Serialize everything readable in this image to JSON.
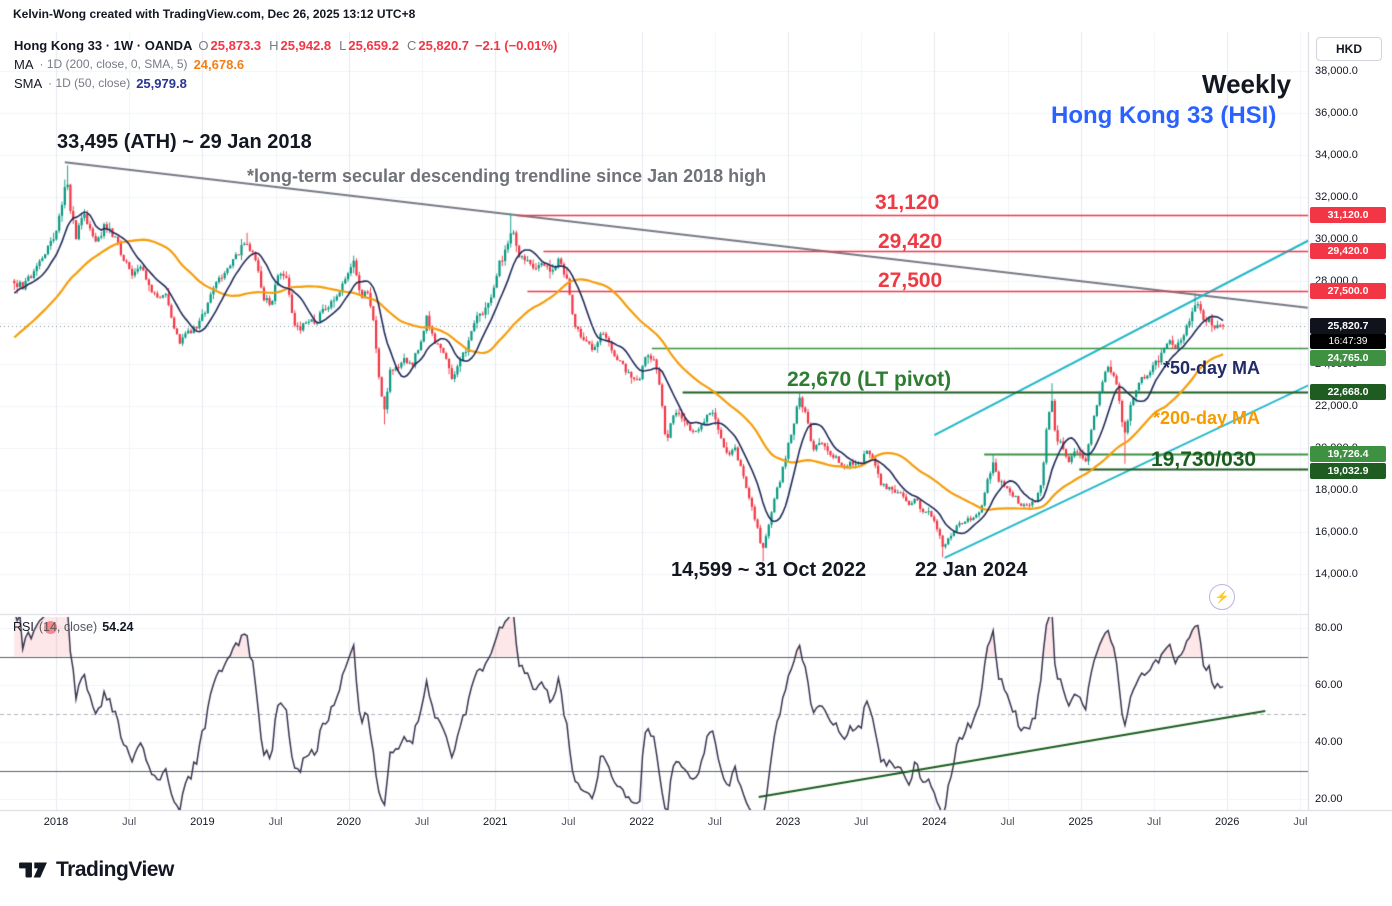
{
  "attribution": "Kelvin-Wong created with TradingView.com, Dec 26, 2025 13:12 UTC+8",
  "logo_text": "TradingView",
  "legend": {
    "symbol_row": {
      "title": "Hong Kong 33 · 1W · OANDA",
      "ohlc": [
        [
          "O",
          "25,873.3"
        ],
        [
          "H",
          "25,942.8"
        ],
        [
          "L",
          "25,659.2"
        ],
        [
          "C",
          "25,820.7"
        ]
      ],
      "change": "−2.1 (−0.01%)",
      "value_color": "#f23645"
    },
    "indicators": [
      {
        "name": "MA",
        "params": "· 1D (200, close, 0, SMA, 5)",
        "value": "24,678.6",
        "color": "#f57f17"
      },
      {
        "name": "SMA",
        "params": "· 1D (50, close)",
        "value": "25,979.8",
        "color": "#283593"
      }
    ]
  },
  "annotations": {
    "weekly": "Weekly",
    "symbol": "Hong Kong 33 (HSI)",
    "ath": "33,495 (ATH) ~ 29 Jan 2018",
    "trendline_note": "*long-term secular descending trendline since Jan 2018 high",
    "res1": "31,120",
    "res2": "29,420",
    "res3": "27,500",
    "pivot": "22,670 (LT pivot)",
    "ma50_note": "*50-day MA",
    "ma200_note": "*200-day MA",
    "support_note": "19,730/030",
    "low_2022": "14,599 ~ 31 Oct 2022",
    "low_2024": "22 Jan 2024"
  },
  "rsi_legend": {
    "name": "RSI",
    "params": "(14, close)",
    "value": "54.24"
  },
  "axis": {
    "currency": "HKD",
    "price_ticks": [
      {
        "label": "38,000.0",
        "value": 38000
      },
      {
        "label": "36,000.0",
        "value": 36000
      },
      {
        "label": "34,000.0",
        "value": 34000
      },
      {
        "label": "32,000.0",
        "value": 32000
      },
      {
        "label": "30,000.0",
        "value": 30000
      },
      {
        "label": "28,000.0",
        "value": 28000
      },
      {
        "label": "26,000.0",
        "value": 26000
      },
      {
        "label": "24,000.0",
        "value": 24000
      },
      {
        "label": "22,000.0",
        "value": 22000
      },
      {
        "label": "20,000.0",
        "value": 20000
      },
      {
        "label": "18,000.0",
        "value": 18000
      },
      {
        "label": "16,000.0",
        "value": 16000
      },
      {
        "label": "14,000.0",
        "value": 14000
      }
    ],
    "rsi_ticks": [
      {
        "label": "80.00",
        "value": 80
      },
      {
        "label": "60.00",
        "value": 60
      },
      {
        "label": "40.00",
        "value": 40
      },
      {
        "label": "20.00",
        "value": 20
      }
    ],
    "time_ticks": [
      {
        "label": "2018",
        "year": 2018,
        "major": true
      },
      {
        "label": "Jul",
        "year": 2018.5,
        "major": false
      },
      {
        "label": "2019",
        "year": 2019,
        "major": true
      },
      {
        "label": "Jul",
        "year": 2019.5,
        "major": false
      },
      {
        "label": "2020",
        "year": 2020,
        "major": true
      },
      {
        "label": "Jul",
        "year": 2020.5,
        "major": false
      },
      {
        "label": "2021",
        "year": 2021,
        "major": true
      },
      {
        "label": "Jul",
        "year": 2021.5,
        "major": false
      },
      {
        "label": "2022",
        "year": 2022,
        "major": true
      },
      {
        "label": "Jul",
        "year": 2022.5,
        "major": false
      },
      {
        "label": "2023",
        "year": 2023,
        "major": true
      },
      {
        "label": "Jul",
        "year": 2023.5,
        "major": false
      },
      {
        "label": "2024",
        "year": 2024,
        "major": true
      },
      {
        "label": "Jul",
        "year": 2024.5,
        "major": false
      },
      {
        "label": "2025",
        "year": 2025,
        "major": true
      },
      {
        "label": "Jul",
        "year": 2025.5,
        "major": false
      },
      {
        "label": "2026",
        "year": 2026,
        "major": true
      },
      {
        "label": "Jul",
        "year": 2026.5,
        "major": false
      }
    ]
  },
  "price_labels": [
    {
      "label": "31,120.0",
      "value": 31120,
      "bg": "#f23645",
      "fg": "#ffffff"
    },
    {
      "label": "29,420.0",
      "value": 29420,
      "bg": "#f23645",
      "fg": "#ffffff"
    },
    {
      "label": "27,500.0",
      "value": 27500,
      "bg": "#f23645",
      "fg": "#ffffff"
    },
    {
      "label": "25,820.7",
      "value": 25820.7,
      "bg": "#10131c",
      "fg": "#ffffff",
      "countdown": "16:47:39"
    },
    {
      "label": "24,765.0",
      "value": 24765,
      "bg": "#3f9142",
      "fg": "#ffffff"
    },
    {
      "label": "22,668.0",
      "value": 22668,
      "bg": "#1e5c22",
      "fg": "#ffffff"
    },
    {
      "label": "19,726.4",
      "value": 19726.4,
      "bg": "#3f9142",
      "fg": "#ffffff"
    },
    {
      "label": "19,032.9",
      "value": 19032.9,
      "bg": "#1e5c22",
      "fg": "#ffffff"
    }
  ],
  "chart_data": {
    "type": "candlestick",
    "symbol": "Hong Kong 33 (HSI)",
    "timeframe": "1W",
    "y_axis": {
      "min": 14000,
      "max": 38000,
      "step": 2000
    },
    "gen_start": 2016.7,
    "draw_start": 2017.7,
    "end_data": 2025.985,
    "current_price": 25820.7,
    "last_candle": {
      "o": 25873.3,
      "h": 25942.8,
      "l": 25659.2,
      "c": 25820.7
    },
    "price_path": [
      [
        2016.7,
        22300
      ],
      [
        2016.95,
        22800
      ],
      [
        2017.2,
        24200
      ],
      [
        2017.45,
        25900
      ],
      [
        2017.6,
        27200
      ],
      [
        2017.7,
        27900
      ],
      [
        2017.78,
        27700
      ],
      [
        2017.85,
        28500
      ],
      [
        2017.93,
        29400
      ],
      [
        2018.0,
        30200
      ],
      [
        2018.045,
        31900
      ],
      [
        2018.075,
        32950
      ],
      [
        2018.1,
        31400
      ],
      [
        2018.14,
        30000
      ],
      [
        2018.18,
        31200
      ],
      [
        2018.23,
        30500
      ],
      [
        2018.28,
        29900
      ],
      [
        2018.34,
        30700
      ],
      [
        2018.4,
        30050
      ],
      [
        2018.46,
        29150
      ],
      [
        2018.52,
        28400
      ],
      [
        2018.58,
        28600
      ],
      [
        2018.64,
        27600
      ],
      [
        2018.7,
        27000
      ],
      [
        2018.74,
        27600
      ],
      [
        2018.79,
        26200
      ],
      [
        2018.84,
        25100
      ],
      [
        2018.88,
        25400
      ],
      [
        2018.93,
        25600
      ],
      [
        2018.97,
        25900
      ],
      [
        2019.03,
        26650
      ],
      [
        2019.09,
        27900
      ],
      [
        2019.16,
        28500
      ],
      [
        2019.22,
        29100
      ],
      [
        2019.3,
        29850
      ],
      [
        2019.36,
        29000
      ],
      [
        2019.42,
        27200
      ],
      [
        2019.47,
        26900
      ],
      [
        2019.52,
        28500
      ],
      [
        2019.57,
        28300
      ],
      [
        2019.62,
        26000
      ],
      [
        2019.66,
        25700
      ],
      [
        2019.72,
        26200
      ],
      [
        2019.77,
        25900
      ],
      [
        2019.83,
        26700
      ],
      [
        2019.89,
        26900
      ],
      [
        2019.94,
        27600
      ],
      [
        2020.0,
        28300
      ],
      [
        2020.04,
        28900
      ],
      [
        2020.08,
        27200
      ],
      [
        2020.12,
        27500
      ],
      [
        2020.17,
        26100
      ],
      [
        2020.21,
        23100
      ],
      [
        2020.24,
        21700
      ],
      [
        2020.28,
        23600
      ],
      [
        2020.33,
        23900
      ],
      [
        2020.38,
        24300
      ],
      [
        2020.43,
        24000
      ],
      [
        2020.49,
        25100
      ],
      [
        2020.53,
        26200
      ],
      [
        2020.58,
        25100
      ],
      [
        2020.64,
        24700
      ],
      [
        2020.7,
        23400
      ],
      [
        2020.76,
        24100
      ],
      [
        2020.81,
        24900
      ],
      [
        2020.87,
        26400
      ],
      [
        2020.93,
        26500
      ],
      [
        2020.98,
        27200
      ],
      [
        2021.03,
        28800
      ],
      [
        2021.08,
        29500
      ],
      [
        2021.12,
        30600
      ],
      [
        2021.16,
        29100
      ],
      [
        2021.21,
        28900
      ],
      [
        2021.27,
        28600
      ],
      [
        2021.33,
        28900
      ],
      [
        2021.38,
        28400
      ],
      [
        2021.44,
        29000
      ],
      [
        2021.49,
        28100
      ],
      [
        2021.54,
        26000
      ],
      [
        2021.59,
        25300
      ],
      [
        2021.63,
        24900
      ],
      [
        2021.68,
        24700
      ],
      [
        2021.73,
        25500
      ],
      [
        2021.78,
        24900
      ],
      [
        2021.83,
        24200
      ],
      [
        2021.88,
        23900
      ],
      [
        2021.93,
        23300
      ],
      [
        2021.98,
        23200
      ],
      [
        2022.03,
        24500
      ],
      [
        2022.08,
        24300
      ],
      [
        2022.13,
        22800
      ],
      [
        2022.17,
        20100
      ],
      [
        2022.2,
        21400
      ],
      [
        2022.25,
        21700
      ],
      [
        2022.31,
        21100
      ],
      [
        2022.37,
        20700
      ],
      [
        2022.43,
        21300
      ],
      [
        2022.48,
        21850
      ],
      [
        2022.53,
        20800
      ],
      [
        2022.58,
        19700
      ],
      [
        2022.64,
        19950
      ],
      [
        2022.7,
        18600
      ],
      [
        2022.75,
        17300
      ],
      [
        2022.79,
        16200
      ],
      [
        2022.825,
        15100
      ],
      [
        2022.86,
        16100
      ],
      [
        2022.9,
        17400
      ],
      [
        2022.95,
        18600
      ],
      [
        2022.99,
        19800
      ],
      [
        2023.04,
        21200
      ],
      [
        2023.07,
        22450
      ],
      [
        2023.12,
        21600
      ],
      [
        2023.17,
        20000
      ],
      [
        2023.22,
        20400
      ],
      [
        2023.28,
        19700
      ],
      [
        2023.33,
        19550
      ],
      [
        2023.38,
        18900
      ],
      [
        2023.43,
        19300
      ],
      [
        2023.49,
        19200
      ],
      [
        2023.54,
        19900
      ],
      [
        2023.58,
        19600
      ],
      [
        2023.63,
        18300
      ],
      [
        2023.68,
        18100
      ],
      [
        2023.73,
        17900
      ],
      [
        2023.78,
        17800
      ],
      [
        2023.83,
        17200
      ],
      [
        2023.87,
        17600
      ],
      [
        2023.92,
        17000
      ],
      [
        2023.97,
        16900
      ],
      [
        2024.02,
        16200
      ],
      [
        2024.055,
        15300
      ],
      [
        2024.1,
        15700
      ],
      [
        2024.15,
        16300
      ],
      [
        2024.21,
        16550
      ],
      [
        2024.27,
        16600
      ],
      [
        2024.32,
        17150
      ],
      [
        2024.36,
        18500
      ],
      [
        2024.4,
        19250
      ],
      [
        2024.44,
        18500
      ],
      [
        2024.49,
        18050
      ],
      [
        2024.54,
        17750
      ],
      [
        2024.59,
        17300
      ],
      [
        2024.64,
        17250
      ],
      [
        2024.69,
        17450
      ],
      [
        2024.73,
        18250
      ],
      [
        2024.765,
        20800
      ],
      [
        2024.8,
        22450
      ],
      [
        2024.83,
        20500
      ],
      [
        2024.87,
        20250
      ],
      [
        2024.91,
        19350
      ],
      [
        2024.95,
        19750
      ],
      [
        2024.99,
        19900
      ],
      [
        2025.03,
        19300
      ],
      [
        2025.07,
        20900
      ],
      [
        2025.11,
        22050
      ],
      [
        2025.15,
        23300
      ],
      [
        2025.19,
        23950
      ],
      [
        2025.23,
        23400
      ],
      [
        2025.27,
        22100
      ],
      [
        2025.295,
        20450
      ],
      [
        2025.33,
        21750
      ],
      [
        2025.37,
        22750
      ],
      [
        2025.41,
        23250
      ],
      [
        2025.45,
        23450
      ],
      [
        2025.49,
        23900
      ],
      [
        2025.53,
        24200
      ],
      [
        2025.57,
        24850
      ],
      [
        2025.61,
        25100
      ],
      [
        2025.64,
        24600
      ],
      [
        2025.68,
        25150
      ],
      [
        2025.72,
        25650
      ],
      [
        2025.76,
        26350
      ],
      [
        2025.79,
        26850
      ],
      [
        2025.82,
        26550
      ],
      [
        2025.85,
        25950
      ],
      [
        2025.88,
        26150
      ],
      [
        2025.91,
        25650
      ],
      [
        2025.94,
        25950
      ],
      [
        2025.965,
        25850
      ],
      [
        2025.985,
        25820.7
      ]
    ],
    "key_points": [
      {
        "year": 2018.075,
        "high": 33495
      },
      {
        "year": 2019.3,
        "high": 30280
      },
      {
        "year": 2020.235,
        "low": 21139
      },
      {
        "year": 2021.115,
        "high": 31183
      },
      {
        "year": 2022.825,
        "low": 14599
      },
      {
        "year": 2023.07,
        "high": 22700
      },
      {
        "year": 2024.055,
        "low": 14794
      },
      {
        "year": 2024.4,
        "high": 19700
      },
      {
        "year": 2024.8,
        "high": 23100
      },
      {
        "year": 2025.295,
        "low": 19260
      },
      {
        "year": 2025.79,
        "high": 27380
      }
    ],
    "levels": [
      {
        "price": 31120,
        "from_year": 2021.15,
        "color": "#f23645",
        "width": 1.6
      },
      {
        "price": 29420,
        "from_year": 2021.33,
        "color": "#f23645",
        "width": 1.6
      },
      {
        "price": 27500,
        "from_year": 2021.22,
        "color": "#f23645",
        "width": 1.6
      },
      {
        "price": 24765,
        "from_year": 2022.07,
        "color": "#3f9142",
        "width": 1.6
      },
      {
        "price": 22668,
        "from_year": 2022.28,
        "color": "#1e5c22",
        "width": 2
      },
      {
        "price": 19726.4,
        "from_year": 2024.34,
        "color": "#3f9142",
        "width": 2
      },
      {
        "price": 19032.9,
        "from_year": 2024.99,
        "color": "#1e5c22",
        "width": 2
      }
    ],
    "trendlines": [
      {
        "name": "secular-descending",
        "x1": 2018.06,
        "p1": 33650,
        "x2": 2026.55,
        "p2": 26700,
        "color": "#787b86",
        "width": 2
      },
      {
        "name": "ascending-upper",
        "x1": 2024.0,
        "p1": 20630,
        "x2": 2026.56,
        "p2": 29930,
        "color": "#22b8c9",
        "width": 2
      },
      {
        "name": "ascending-lower",
        "x1": 2024.07,
        "p1": 14770,
        "x2": 2026.56,
        "p2": 23020,
        "color": "#22b8c9",
        "width": 2
      }
    ],
    "moving_averages": [
      {
        "name": "200-day MA",
        "weeks": 40,
        "color": "#f59e0b"
      },
      {
        "name": "50-day MA",
        "weeks": 10,
        "color": "#222c5c"
      }
    ],
    "rsi": {
      "period": 14,
      "current": 54.24,
      "range": [
        20,
        80
      ],
      "levels": {
        "upper": 70,
        "middle": 50,
        "lower": 30
      },
      "trendline": {
        "x1": 2022.8,
        "v1": 20.7,
        "x2": 2026.26,
        "v2": 50.9,
        "color": "#1b5e20"
      }
    },
    "colors": {
      "up": "#089981",
      "down": "#f23645",
      "grid": "#f1f3f9",
      "grid_major": "#e8eaf2",
      "axis_border": "#d6d9e0",
      "dotted": "#9094a0",
      "rsi": "#3a3650",
      "rsi_band": "#5d6069",
      "rsi_mid": "#b2b5be",
      "rsi_fill": "rgba(242,54,69,0.12)"
    }
  }
}
